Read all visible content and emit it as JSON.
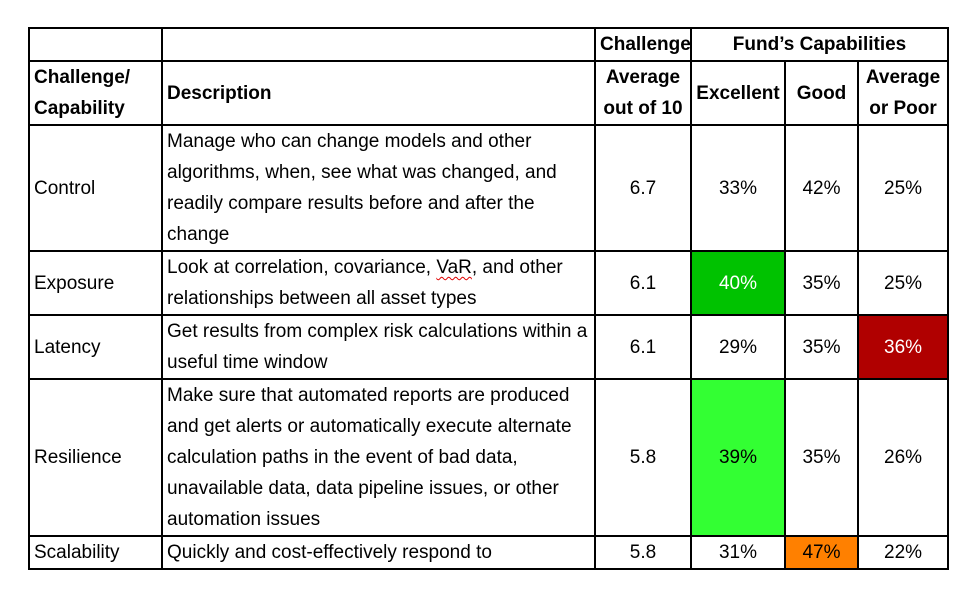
{
  "table": {
    "header1": {
      "challenge": "Challenge",
      "funds_capabilities": "Fund’s Capabilities"
    },
    "header2": {
      "col1_line1": "Challenge/",
      "col1_line2": "Capability",
      "description": "Description",
      "avg_line1": "Average",
      "avg_line2": "out of 10",
      "excellent": "Excellent",
      "good": "Good",
      "poor_line1": "Average",
      "poor_line2": "or Poor"
    },
    "rows": [
      {
        "name": "Control",
        "description": "Manage who can change models and other algorithms, when, see what was changed, and readily compare results before and after the change",
        "average": "6.7",
        "excellent": "33%",
        "good": "42%",
        "poor": "25%"
      },
      {
        "name": "Exposure",
        "description_pre": "Look at correlation, covariance, ",
        "description_flag": "VaR",
        "description_post": ", and other relationships between all asset types",
        "average": "6.1",
        "excellent": "40%",
        "good": "35%",
        "poor": "25%"
      },
      {
        "name": "Latency",
        "description": "Get results from complex risk calculations within a useful time window",
        "average": "6.1",
        "excellent": "29%",
        "good": "35%",
        "poor": "36%"
      },
      {
        "name": "Resilience",
        "description": "Make sure that automated reports are produced and get alerts or automatically execute alternate calculation paths in the event of bad data, unavailable data, data pipeline issues, or other automation issues",
        "average": "5.8",
        "excellent": "39%",
        "good": "35%",
        "poor": "26%"
      },
      {
        "name": "Scalability",
        "description": "Quickly and cost-effectively respond to",
        "average": "5.8",
        "excellent": "31%",
        "good": "47%",
        "poor": "22%"
      }
    ]
  },
  "colors": {
    "dark_green": "#00c200",
    "bright_green": "#33ff33",
    "dark_red": "#b00000",
    "orange": "#ff8000"
  }
}
